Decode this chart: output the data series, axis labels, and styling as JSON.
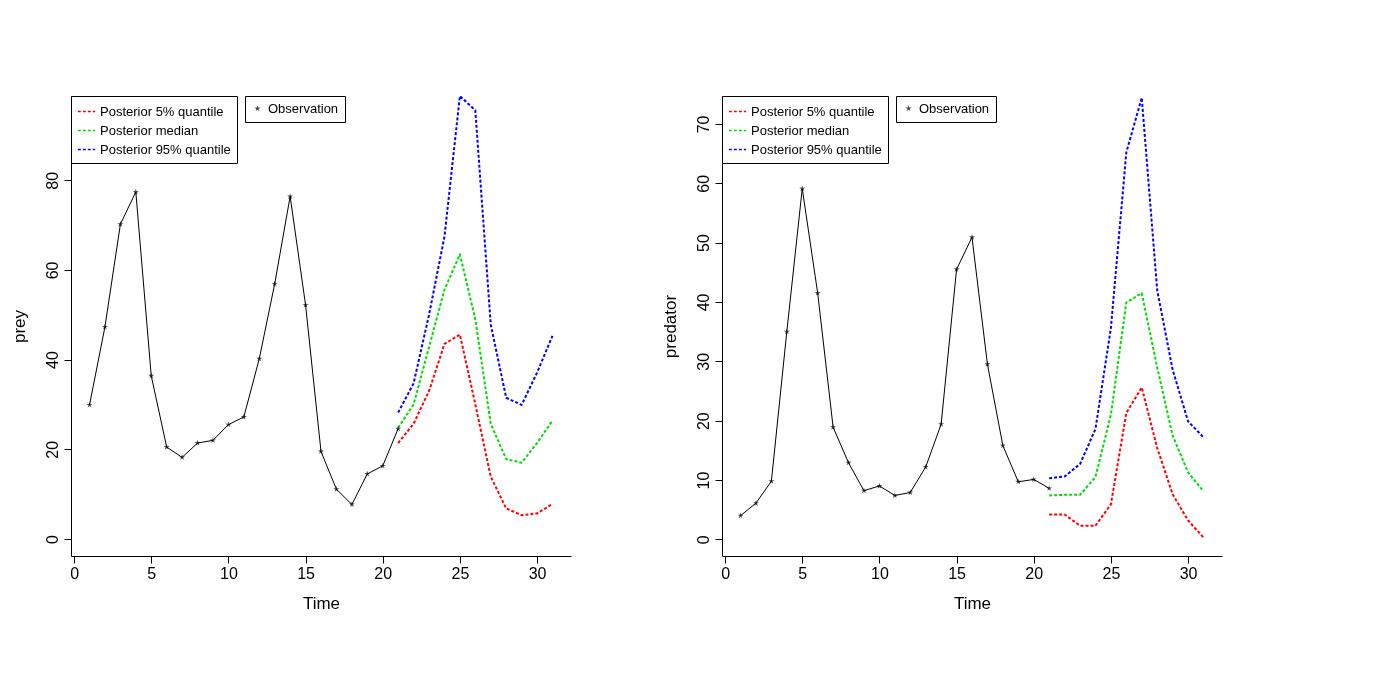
{
  "chart_data": [
    {
      "type": "line",
      "xlabel": "Time",
      "ylabel": "prey",
      "xlim": [
        -0.2,
        32.2
      ],
      "ylim": [
        -3.8,
        98.8
      ],
      "xticks": [
        0,
        5,
        10,
        15,
        20,
        25,
        30
      ],
      "yticks": [
        0,
        20,
        40,
        60,
        80
      ],
      "grid": false,
      "legend": "top left",
      "series": [
        {
          "name": "Posterior 5% quantile",
          "color": "#ff0000",
          "line_style": "dashed",
          "marker": "none",
          "x": [
            21,
            22,
            23,
            24,
            25,
            26,
            27,
            28,
            29,
            30,
            31
          ],
          "values": [
            21.4,
            25.7,
            33.0,
            43.5,
            45.6,
            30.0,
            13.9,
            6.8,
            5.3,
            5.7,
            7.8
          ]
        },
        {
          "name": "Posterior median",
          "color": "#00dd00",
          "line_style": "dashed",
          "marker": "none",
          "x": [
            21,
            22,
            23,
            24,
            25,
            26,
            27,
            28,
            29,
            30,
            31
          ],
          "values": [
            24.8,
            30.0,
            42.8,
            55.6,
            63.5,
            49.0,
            25.7,
            17.8,
            17.0,
            21.4,
            26.4
          ]
        },
        {
          "name": "Posterior 95% quantile",
          "color": "#0000ff",
          "line_style": "dashed",
          "marker": "none",
          "x": [
            21,
            22,
            23,
            24,
            25,
            26,
            27,
            28,
            29,
            30,
            31
          ],
          "values": [
            28.2,
            34.7,
            50.0,
            67.4,
            98.8,
            95.6,
            47.8,
            31.5,
            29.9,
            37.1,
            45.3
          ]
        },
        {
          "name": "Observation",
          "color": "#000000",
          "line_style": "solid",
          "marker": "star",
          "x": [
            1,
            2,
            3,
            4,
            5,
            6,
            7,
            8,
            9,
            10,
            11,
            12,
            13,
            14,
            15,
            16,
            17,
            18,
            19,
            20,
            21
          ],
          "values": [
            29.9,
            47.3,
            70.2,
            77.4,
            36.4,
            20.5,
            18.2,
            21.4,
            22.0,
            25.5,
            27.2,
            40.2,
            56.9,
            76.4,
            52.2,
            19.5,
            11.1,
            7.7,
            14.5,
            16.3,
            24.6
          ]
        }
      ]
    },
    {
      "type": "line",
      "xlabel": "Time",
      "ylabel": "predator",
      "xlim": [
        -0.2,
        32.2
      ],
      "ylim": [
        -2.8,
        74.7
      ],
      "xticks": [
        0,
        5,
        10,
        15,
        20,
        25,
        30
      ],
      "yticks": [
        0,
        10,
        20,
        30,
        40,
        50,
        60,
        70
      ],
      "grid": false,
      "legend": "top left",
      "series": [
        {
          "name": "Posterior 5% quantile",
          "color": "#ff0000",
          "line_style": "dashed",
          "marker": "none",
          "x": [
            21,
            22,
            23,
            24,
            25,
            26,
            27,
            28,
            29,
            30,
            31
          ],
          "values": [
            4.2,
            4.2,
            2.3,
            2.3,
            5.9,
            21.3,
            25.6,
            15.4,
            7.6,
            3.2,
            0.3
          ]
        },
        {
          "name": "Posterior median",
          "color": "#00dd00",
          "line_style": "dashed",
          "marker": "none",
          "x": [
            21,
            22,
            23,
            24,
            25,
            26,
            27,
            28,
            29,
            30,
            31
          ],
          "values": [
            7.4,
            7.5,
            7.5,
            10.5,
            21.0,
            39.9,
            41.5,
            29.0,
            17.5,
            11.3,
            8.1
          ]
        },
        {
          "name": "Posterior 95% quantile",
          "color": "#0000ff",
          "line_style": "dashed",
          "marker": "none",
          "x": [
            21,
            22,
            23,
            24,
            25,
            26,
            27,
            28,
            29,
            30,
            31
          ],
          "values": [
            10.3,
            10.6,
            12.7,
            18.6,
            35.6,
            65.2,
            74.4,
            42.0,
            28.6,
            19.9,
            17.2
          ]
        },
        {
          "name": "Observation",
          "color": "#000000",
          "line_style": "solid",
          "marker": "star",
          "x": [
            1,
            2,
            3,
            4,
            5,
            6,
            7,
            8,
            9,
            10,
            11,
            12,
            13,
            14,
            15,
            16,
            17,
            18,
            19,
            20,
            21
          ],
          "values": [
            4.0,
            6.1,
            9.8,
            35.0,
            59.1,
            41.5,
            18.9,
            12.9,
            8.2,
            9.0,
            7.4,
            7.9,
            12.2,
            19.4,
            45.5,
            50.9,
            29.5,
            15.8,
            9.7,
            10.1,
            8.6
          ]
        }
      ]
    }
  ]
}
